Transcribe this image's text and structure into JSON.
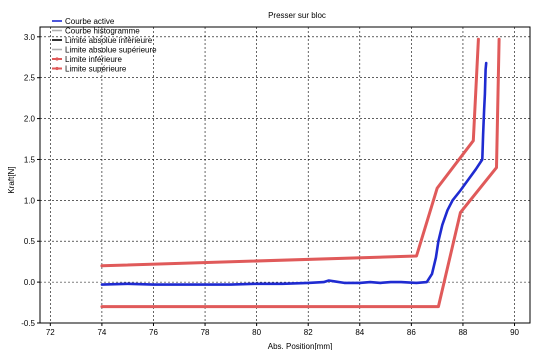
{
  "chart_data": {
    "type": "line",
    "title": "Presser sur bloc",
    "xlabel": "Abs. Position[mm]",
    "ylabel": "Kraft[N]",
    "xlim": [
      71.6,
      90.6
    ],
    "ylim": [
      -0.5,
      3.12
    ],
    "grid": true,
    "legend_position": "top-left",
    "x_ticks": [
      "72",
      "74",
      "76",
      "78",
      "80",
      "82",
      "84",
      "86",
      "88",
      "90"
    ],
    "y_ticks": [
      "-0.5",
      "0.0",
      "0.5",
      "1.0",
      "1.5",
      "2.0",
      "2.5",
      "3.0"
    ],
    "x_tick_values": [
      72,
      74,
      76,
      78,
      80,
      82,
      84,
      86,
      88,
      90
    ],
    "y_tick_values": [
      -0.5,
      0.0,
      0.5,
      1.0,
      1.5,
      2.0,
      2.5,
      3.0
    ],
    "legend": [
      {
        "name": "Courbe active",
        "color": "#1f2bd1",
        "style": "line"
      },
      {
        "name": "Courbe histogramme",
        "color": "#b0b0b0",
        "style": "line"
      },
      {
        "name": "Limite absolue inférieure",
        "color": "#000000",
        "style": "line"
      },
      {
        "name": "Limite absolue supérieure",
        "color": "#b0b0b0",
        "style": "line"
      },
      {
        "name": "Limite inférieure",
        "color": "#e05a5a",
        "style": "marker-line"
      },
      {
        "name": "Limite supérieure",
        "color": "#e05a5a",
        "style": "marker-line"
      }
    ],
    "series": [
      {
        "name": "Courbe active",
        "color": "#1f2bd1",
        "points": [
          [
            74.0,
            -0.03
          ],
          [
            75.0,
            -0.02
          ],
          [
            76.0,
            -0.03
          ],
          [
            77.0,
            -0.03
          ],
          [
            78.0,
            -0.03
          ],
          [
            79.0,
            -0.03
          ],
          [
            80.0,
            -0.02
          ],
          [
            81.0,
            -0.02
          ],
          [
            82.0,
            -0.01
          ],
          [
            82.6,
            0.0
          ],
          [
            82.8,
            0.02
          ],
          [
            83.0,
            0.01
          ],
          [
            83.4,
            -0.01
          ],
          [
            84.0,
            -0.01
          ],
          [
            84.4,
            0.0
          ],
          [
            84.8,
            -0.01
          ],
          [
            85.2,
            0.0
          ],
          [
            85.6,
            0.0
          ],
          [
            86.2,
            -0.01
          ],
          [
            86.6,
            0.0
          ],
          [
            86.8,
            0.1
          ],
          [
            86.95,
            0.3
          ],
          [
            87.05,
            0.5
          ],
          [
            87.2,
            0.7
          ],
          [
            87.4,
            0.88
          ],
          [
            87.6,
            1.0
          ],
          [
            87.9,
            1.12
          ],
          [
            88.2,
            1.25
          ],
          [
            88.5,
            1.38
          ],
          [
            88.75,
            1.5
          ],
          [
            88.78,
            1.8
          ],
          [
            88.82,
            2.1
          ],
          [
            88.85,
            2.3
          ],
          [
            88.88,
            2.6
          ],
          [
            88.9,
            2.68
          ]
        ]
      },
      {
        "name": "Limite supérieure",
        "color": "#e05a5a",
        "points": [
          [
            74.0,
            0.2
          ],
          [
            86.2,
            0.32
          ],
          [
            87.0,
            1.15
          ],
          [
            88.4,
            1.73
          ],
          [
            88.6,
            2.97
          ]
        ]
      },
      {
        "name": "Limite inférieure",
        "color": "#e05a5a",
        "points": [
          [
            74.0,
            -0.3
          ],
          [
            87.05,
            -0.3
          ],
          [
            87.9,
            0.85
          ],
          [
            89.3,
            1.4
          ],
          [
            89.4,
            2.97
          ]
        ]
      }
    ]
  }
}
